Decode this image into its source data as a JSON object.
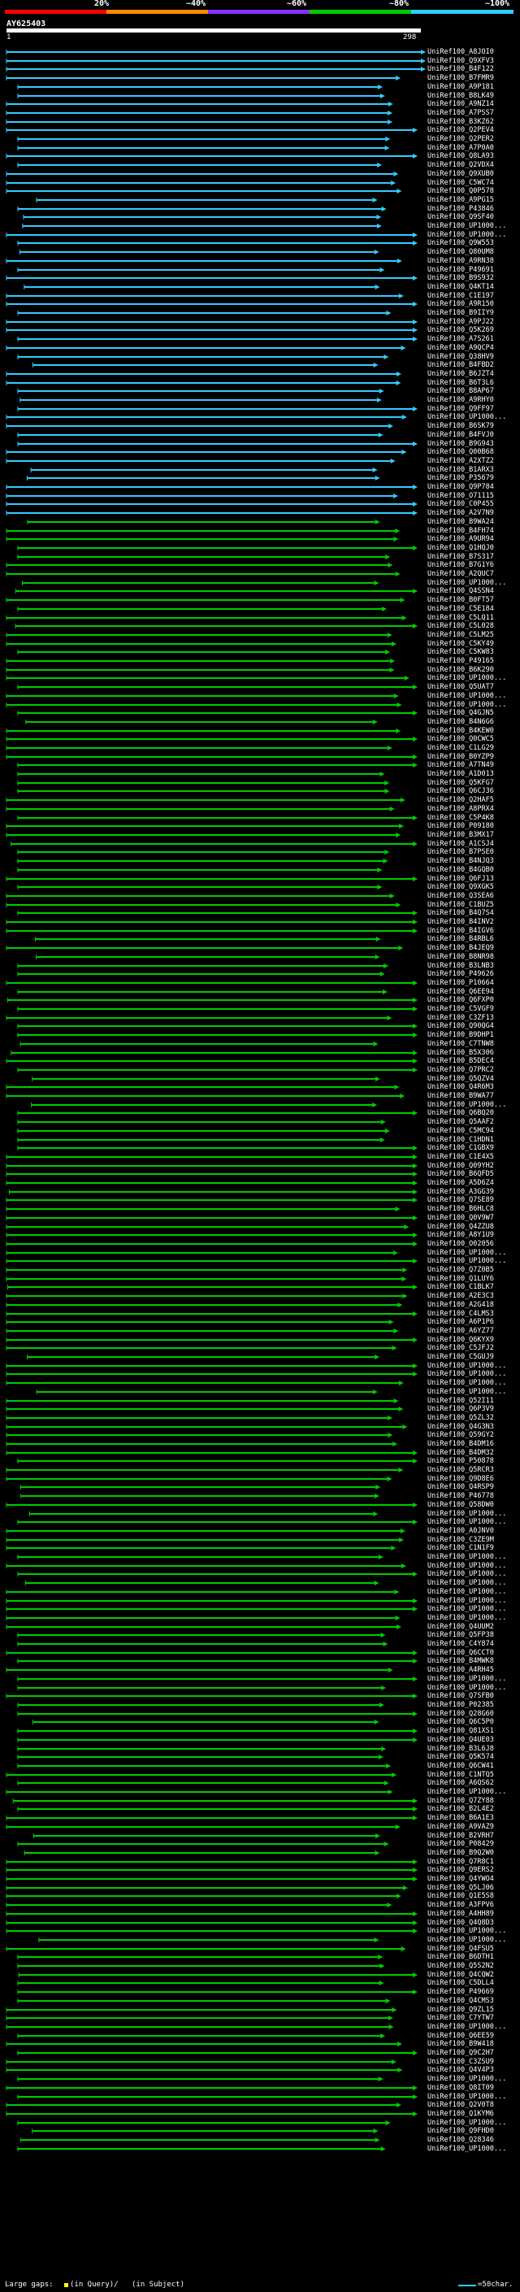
{
  "query": {
    "name": "AY625403",
    "start": "1",
    "end": "298"
  },
  "score_scale": {
    "labels": [
      "20%",
      "~40%",
      "~60%",
      "~80%",
      "~100%"
    ],
    "colors": [
      "#ff0000",
      "#ff8800",
      "#8833ff",
      "#00cc00",
      "#33ccff"
    ]
  },
  "legend": {
    "large_gaps": "Large gaps:",
    "in_query": "(in Query)/",
    "in_subject": "(in Subject)",
    "scale": "=50char."
  },
  "hits": [
    "UniRef100_A8JOI0",
    "UniRef100_Q9XFV3",
    "UniRef100_B4F122",
    "UniRef100_B7FMR9",
    "UniRef100_A9P181",
    "UniRef100_B8LK49",
    "UniRef100_A9NZ14",
    "UniRef100_A7PSS7",
    "UniRef100_B3KZ62",
    "UniRef100_Q2PEV4",
    "UniRef100_Q2PER2",
    "UniRef100_A7P0A0",
    "UniRef100_Q8LA93",
    "UniRef100_Q2VDX4",
    "UniRef100_Q9XUB0",
    "UniRef100_C5WC74",
    "UniRef100_Q0P578",
    "UniRef100_A9PG15",
    "UniRef100_P43846",
    "UniRef100_Q9SF40",
    "UniRef100_UP1000...",
    "UniRef100_UP1000...",
    "UniRef100_Q9W553",
    "UniRef100_Q80UM8",
    "UniRef100_A9RN38",
    "UniRef100_P49691",
    "UniRef100_B9S932",
    "UniRef100_Q4KT14",
    "UniRef100_C1E197",
    "UniRef100_A9R150",
    "UniRef100_B9IIY9",
    "UniRef100_A9PJ22",
    "UniRef100_Q5K269",
    "UniRef100_A7S261",
    "UniRef100_A9QCP4",
    "UniRef100_Q38HV9",
    "UniRef100_B4FBD2",
    "UniRef100_B6JZT4",
    "UniRef100_B6T3L6",
    "UniRef100_B8AP67",
    "UniRef100_A9RHY0",
    "UniRef100_Q9FF97",
    "UniRef100_UP1000...",
    "UniRef100_B6SK79",
    "UniRef100_B4FVJ0",
    "UniRef100_B9G943",
    "UniRef100_Q00B68",
    "UniRef100_A2XTZ2",
    "UniRef100_B1ARX3",
    "UniRef100_P35679",
    "UniRef100_Q9P784",
    "UniRef100_O71115",
    "UniRef100_C0P455",
    "UniRef100_A2V7N9",
    "UniRef100_B9WA24",
    "UniRef100_B4FH74",
    "UniRef100_A9UR94",
    "UniRef100_Q1HQJ0",
    "UniRef100_B7S317",
    "UniRef100_B7G1Y6",
    "UniRef100_A2QUC7",
    "UniRef100_UP1000...",
    "UniRef100_Q4SSN4",
    "UniRef100_B0FT57",
    "UniRef100_C5E184",
    "UniRef100_C5LQ11",
    "UniRef100_C5L028",
    "UniRef100_C5LM25",
    "UniRef100_C5KY49",
    "UniRef100_C5KW83",
    "UniRef100_P49165",
    "UniRef100_B6K290",
    "UniRef100_UP1000...",
    "UniRef100_Q5UAT7",
    "UniRef100_UP1000...",
    "UniRef100_UP1000...",
    "UniRef100_Q4GJN5",
    "UniRef100_B4N6G6",
    "UniRef100_B4KEW0",
    "UniRef100_Q0CWC5",
    "UniRef100_C1LG29",
    "UniRef100_B0YZP9",
    "UniRef100_A7TN49",
    "UniRef100_A1D013",
    "UniRef100_Q5KFG7",
    "UniRef100_Q6CJ36",
    "UniRef100_Q2HAF5",
    "UniRef100_A8PRX4",
    "UniRef100_C5P4K8",
    "UniRef100_P09180",
    "UniRef100_B3MX17",
    "UniRef100_A1CSJ4",
    "UniRef100_B7PSE0",
    "UniRef100_B4NJQ3",
    "UniRef100_B4GQB0",
    "UniRef100_Q6FJ13",
    "UniRef100_Q9XGK5",
    "UniRef100_Q3SEA6",
    "UniRef100_C1BUZ5",
    "UniRef100_B4Q7S4",
    "UniRef100_B4INV2",
    "UniRef100_B4IGV6",
    "UniRef100_B4RBL6",
    "UniRef100_B4JEQ9",
    "UniRef100_B8NR98",
    "UniRef100_B3LNB3",
    "UniRef100_P49626",
    "UniRef100_P10664",
    "UniRef100_Q6EE94",
    "UniRef100_Q6FXP0",
    "UniRef100_C5VGF9",
    "UniRef100_C3ZF13",
    "UniRef100_Q90QG4",
    "UniRef100_B9DHP1",
    "UniRef100_C7TNW8",
    "UniRef100_B5X306",
    "UniRef100_B5DEC4",
    "UniRef100_Q7PRC2",
    "UniRef100_Q5QZV4",
    "UniRef100_Q4R6M3",
    "UniRef100_B9WA77",
    "UniRef100_UP1000...",
    "UniRef100_Q6BQ20",
    "UniRef100_Q5AAF2",
    "UniRef100_C5MC94",
    "UniRef100_C1HDN1",
    "UniRef100_C1GBX9",
    "UniRef100_C1E4X5",
    "UniRef100_Q09YH2",
    "UniRef100_B6QFD5",
    "UniRef100_A5D6Z4",
    "UniRef100_A3GG39",
    "UniRef100_Q7SE89",
    "UniRef100_B6HLC8",
    "UniRef100_Q0V9W7",
    "UniRef100_Q4ZZU8",
    "UniRef100_A8Y1U9",
    "UniRef100_O02056",
    "UniRef100_UP1000...",
    "UniRef100_UP1000...",
    "UniRef100_Q7Z0B5",
    "UniRef100_Q1LUY6",
    "UniRef100_C1BLK7",
    "UniRef100_A2E3C3",
    "UniRef100_A2G418",
    "UniRef100_C4LMS3",
    "UniRef100_A6P1P6",
    "UniRef100_A6YZ77",
    "UniRef100_Q6KYX9",
    "UniRef100_C5JFJ2",
    "UniRef100_C5GUJ9",
    "UniRef100_UP1000...",
    "UniRef100_UP1000...",
    "UniRef100_UP1000...",
    "UniRef100_UP1000...",
    "UniRef100_Q52I11",
    "UniRef100_Q6P3V9",
    "UniRef100_Q5ZL32",
    "UniRef100_Q4G3N3",
    "UniRef100_Q59GY2",
    "UniRef100_B4DM16",
    "UniRef100_B4DM32",
    "UniRef100_P50878",
    "UniRef100_Q5RCR3",
    "UniRef100_Q9D8E6",
    "UniRef100_Q4RSP9",
    "UniRef100_P46778",
    "UniRef100_Q58DW0",
    "UniRef100_UP1000...",
    "UniRef100_UP1000...",
    "UniRef100_A0JNV0",
    "UniRef100_C3ZE9M",
    "UniRef100_C1N1F9",
    "UniRef100_UP1000...",
    "UniRef100_UP1000...",
    "UniRef100_UP1000...",
    "UniRef100_UP1000...",
    "UniRef100_UP1000...",
    "UniRef100_UP1000...",
    "UniRef100_UP1000...",
    "UniRef100_UP1000...",
    "UniRef100_Q4UUM2",
    "UniRef100_Q5FP38",
    "UniRef100_C4Y874",
    "UniRef100_Q6CCT0",
    "UniRef100_B4MWK8",
    "UniRef100_A4RH45",
    "UniRef100_UP1000...",
    "UniRef100_UP1000...",
    "UniRef100_Q7SFB0",
    "UniRef100_P02385",
    "UniRef100_Q28G60",
    "UniRef100_Q6C5P0",
    "UniRef100_Q81XS1",
    "UniRef100_Q4UE03",
    "UniRef100_B3L6J8",
    "UniRef100_Q5K574",
    "UniRef100_Q6CW41",
    "UniRef100_C1NTQ5",
    "UniRef100_A6QS62",
    "UniRef100_UP1000...",
    "UniRef100_Q7ZY88",
    "UniRef100_B2L4E2",
    "UniRef100_B6A1E3",
    "UniRef100_A9VAZ9",
    "UniRef100_B2VRH7",
    "UniRef100_P08429",
    "UniRef100_B9Q2W0",
    "UniRef100_Q7R8C1",
    "UniRef100_Q9ERS2",
    "UniRef100_Q4YWO4",
    "UniRef100_Q5LJ06",
    "UniRef100_Q1E5S8",
    "UniRef100_A3FPV6",
    "UniRef100_A4HH89",
    "UniRef100_Q4Q8D3",
    "UniRef100_UP1000...",
    "UniRef100_UP1000...",
    "UniRef100_Q4FSU5",
    "UniRef100_B6DTH1",
    "UniRef100_Q5S2N2",
    "UniRef100_Q4CQW2",
    "UniRef100_C5DLL4",
    "UniRef100_P49669",
    "UniRef100_Q4CMS3",
    "UniRef100_Q9ZL15",
    "UniRef100_C7YTW7",
    "UniRef100_UP1000...",
    "UniRef100_Q6EE59",
    "UniRef100_B9W418",
    "UniRef100_Q9C2H7",
    "UniRef100_C3ZSU9",
    "UniRef100_Q4V4P3",
    "UniRef100_UP1000...",
    "UniRef100_Q8IT09",
    "UniRef100_UP1000...",
    "UniRef100_Q2V0T8",
    "UniRef100_Q1KYM6",
    "UniRef100_UP1000...",
    "UniRef100_Q9FHD0",
    "UniRef100_Q28346",
    "UniRef100_UP1000..."
  ]
}
